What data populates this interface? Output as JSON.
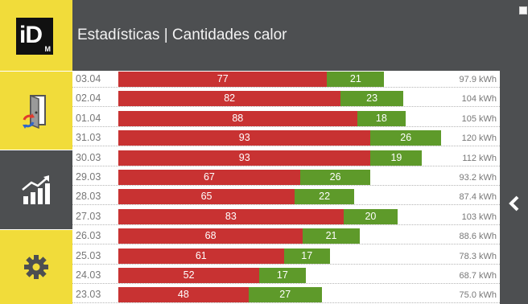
{
  "header": {
    "logo_text": "iD",
    "logo_sub": "M",
    "title": "Estadísticas | Cantidades calor"
  },
  "icons": {
    "door": "door-heating-icon",
    "stats": "statistics-chart-icon",
    "settings": "gear-icon",
    "collapse": "chevron-left-icon",
    "corner": "window-icon"
  },
  "colors": {
    "header_bg": "#4d4f51",
    "accent_yellow": "#f1dc3a",
    "bar_red": "#c83232",
    "bar_green": "#5e9a2a"
  },
  "rows": [
    {
      "date": "03.04",
      "red": 77,
      "green": 21,
      "total": "97.9 kWh"
    },
    {
      "date": "02.04",
      "red": 82,
      "green": 23,
      "total": "104 kWh"
    },
    {
      "date": "01.04",
      "red": 88,
      "green": 18,
      "total": "105 kWh"
    },
    {
      "date": "31.03",
      "red": 93,
      "green": 26,
      "total": "120 kWh"
    },
    {
      "date": "30.03",
      "red": 93,
      "green": 19,
      "total": "112 kWh"
    },
    {
      "date": "29.03",
      "red": 67,
      "green": 26,
      "total": "93.2 kWh"
    },
    {
      "date": "28.03",
      "red": 65,
      "green": 22,
      "total": "87.4 kWh"
    },
    {
      "date": "27.03",
      "red": 83,
      "green": 20,
      "total": "103 kWh"
    },
    {
      "date": "26.03",
      "red": 68,
      "green": 21,
      "total": "88.6 kWh"
    },
    {
      "date": "25.03",
      "red": 61,
      "green": 17,
      "total": "78.3 kWh"
    },
    {
      "date": "24.03",
      "red": 52,
      "green": 17,
      "total": "68.7 kWh"
    },
    {
      "date": "23.03",
      "red": 48,
      "green": 27,
      "total": "75.0 kWh"
    }
  ]
}
